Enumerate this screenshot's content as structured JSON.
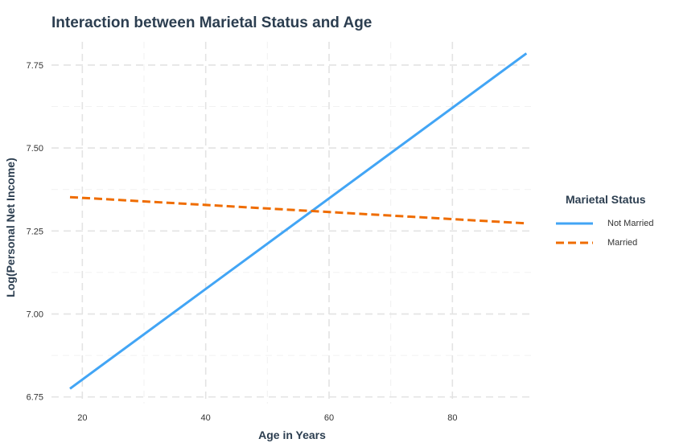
{
  "chart_data": {
    "type": "line",
    "title": "Interaction between Marietal Status and Age",
    "xlabel": "Age in Years",
    "ylabel": "Log(Personal Net Income)",
    "xlim": [
      15,
      93
    ],
    "ylim": [
      6.73,
      7.82
    ],
    "x_ticks": [
      20,
      40,
      60,
      80
    ],
    "y_ticks": [
      6.75,
      7.0,
      7.25,
      7.5,
      7.75
    ],
    "y_tick_labels": [
      "6.75",
      "7.00",
      "7.25",
      "7.50",
      "7.75"
    ],
    "x_tick_labels": [
      "20",
      "40",
      "60",
      "80"
    ],
    "grid": true,
    "legend_position": "right",
    "legend_title": "Marietal Status",
    "series": [
      {
        "name": "Not Married",
        "color": "#42a5f5",
        "line_style": "solid",
        "x": [
          18,
          92
        ],
        "y": [
          6.775,
          7.785
        ]
      },
      {
        "name": "Married",
        "color": "#ef6c00",
        "line_style": "dashed",
        "x": [
          18,
          92
        ],
        "y": [
          7.352,
          7.273
        ]
      }
    ]
  }
}
